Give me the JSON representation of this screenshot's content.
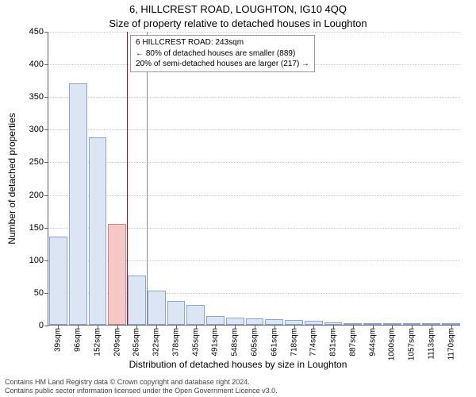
{
  "title": "6, HILLCREST ROAD, LOUGHTON, IG10 4QQ",
  "subtitle": "Size of property relative to detached houses in Loughton",
  "ylabel": "Number of detached properties",
  "xlabel": "Distribution of detached houses by size in Loughton",
  "footer_line1": "Contains HM Land Registry data © Crown copyright and database right 2024.",
  "footer_line2": "Contains public sector information licensed under the Open Government Licence v3.0.",
  "chart": {
    "ylim_max": 450,
    "ytick_step": 50,
    "bar_fill": "#dce5f4",
    "bar_stroke": "#8aa6d6",
    "highlight_fill": "#f5c7c7",
    "highlight_stroke": "#c08888",
    "grid_color": "#cccccc",
    "axis_color": "#666666",
    "vline_red": "#cc0000",
    "vline_gray": "#888888",
    "categories": [
      "39sqm",
      "96sqm",
      "152sqm",
      "209sqm",
      "265sqm",
      "322sqm",
      "378sqm",
      "435sqm",
      "491sqm",
      "548sqm",
      "605sqm",
      "661sqm",
      "718sqm",
      "774sqm",
      "831sqm",
      "887sqm",
      "944sqm",
      "1000sqm",
      "1057sqm",
      "1113sqm",
      "1170sqm"
    ],
    "values": [
      135,
      370,
      287,
      155,
      75,
      52,
      37,
      30,
      14,
      11,
      10,
      8,
      7,
      6,
      4,
      3,
      2,
      2,
      1,
      1,
      1
    ],
    "highlight_index": 3,
    "red_line_after_index": 3,
    "gray_line_after_index": 4
  },
  "legend": {
    "line1": "6 HILLCREST ROAD: 243sqm",
    "line2": "← 80% of detached houses are smaller (889)",
    "line3": "20% of semi-detached houses are larger (217) →"
  }
}
